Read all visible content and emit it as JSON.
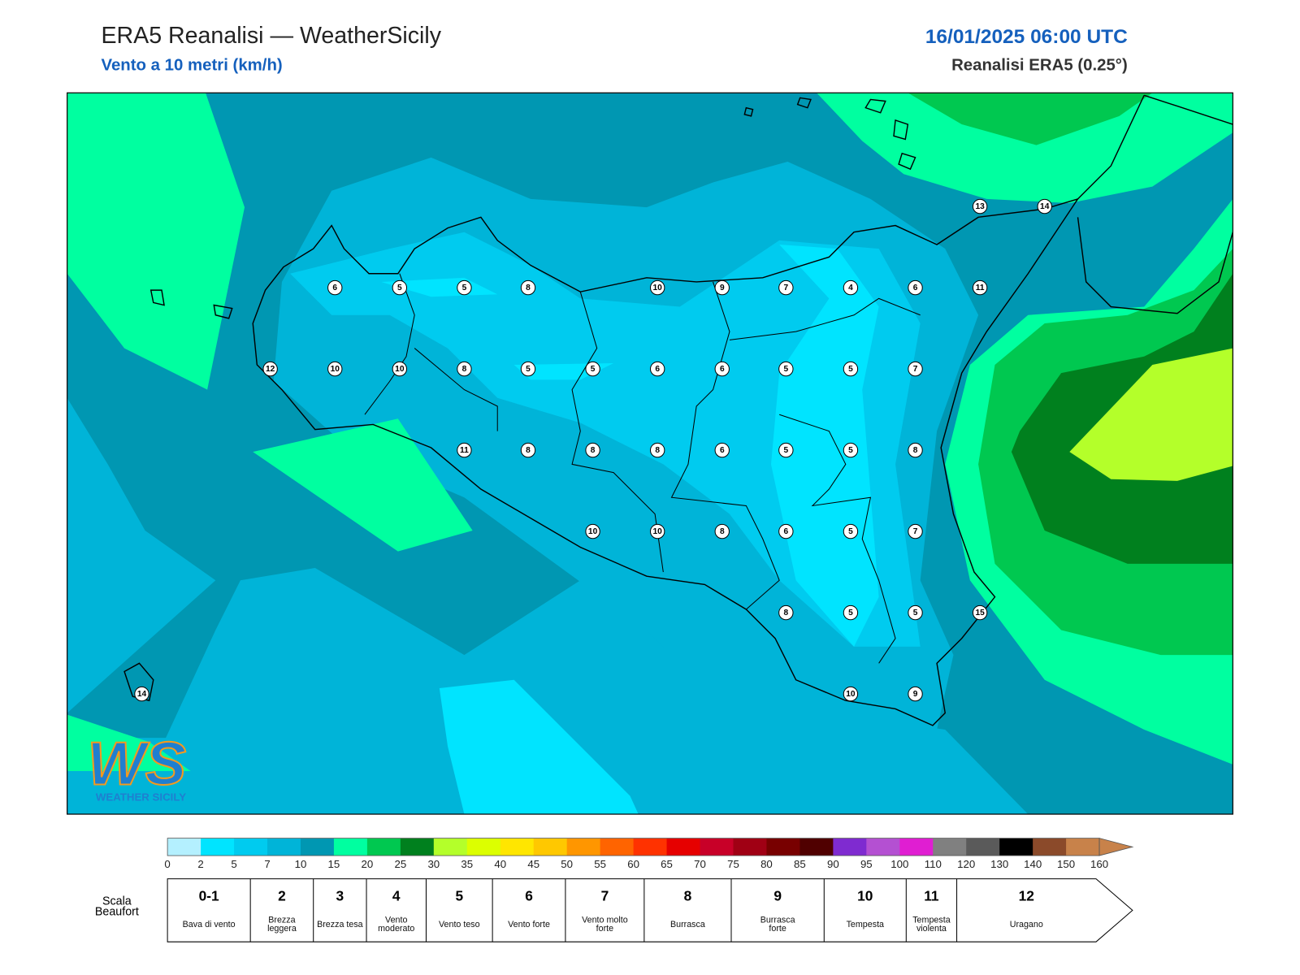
{
  "header": {
    "title": "ERA5 Reanalisi — WeatherSicily",
    "subtitle": "Vento a 10 metri (km/h)",
    "datetime": "16/01/2025 06:00 UTC",
    "source": "Reanalisi ERA5 (0.25°)"
  },
  "map": {
    "stations": [
      6,
      5,
      5,
      8,
      10,
      9,
      7,
      4,
      6,
      11,
      12,
      10,
      10,
      8,
      5,
      5,
      6,
      6,
      5,
      5,
      7,
      11,
      8,
      8,
      8,
      6,
      5,
      5,
      8,
      10,
      10,
      8,
      6,
      5,
      7,
      8,
      5,
      5,
      15,
      10,
      9,
      13,
      14,
      14
    ]
  },
  "logo": {
    "mark": "WS",
    "text": "WEATHER SICILY"
  },
  "colorbar": {
    "ticks": [
      0,
      2,
      5,
      7,
      10,
      15,
      20,
      25,
      30,
      35,
      40,
      45,
      50,
      55,
      60,
      65,
      70,
      75,
      80,
      85,
      90,
      95,
      100,
      110,
      120,
      130,
      140,
      150,
      160
    ],
    "colors": [
      "#b4f0ff",
      "#00e4ff",
      "#00cbef",
      "#00b4d8",
      "#0097b2",
      "#00ffa0",
      "#00c850",
      "#00801e",
      "#b4ff2a",
      "#dcff00",
      "#ffe600",
      "#ffc800",
      "#ff9600",
      "#ff6400",
      "#ff3200",
      "#e60000",
      "#c80028",
      "#a00014",
      "#780000",
      "#500000",
      "#7f2bd0",
      "#b450d2",
      "#e01ed2",
      "#808080",
      "#5a5a5a",
      "#000000",
      "#8b4a2a",
      "#c8824a"
    ]
  },
  "beaufort": {
    "title": "Scala Beaufort",
    "levels": [
      {
        "force": "0-1",
        "label": "Bava di vento"
      },
      {
        "force": "2",
        "label": "Brezza leggera"
      },
      {
        "force": "3",
        "label": "Brezza tesa"
      },
      {
        "force": "4",
        "label": "Vento moderato"
      },
      {
        "force": "5",
        "label": "Vento teso"
      },
      {
        "force": "6",
        "label": "Vento forte"
      },
      {
        "force": "7",
        "label": "Vento molto forte"
      },
      {
        "force": "8",
        "label": "Burrasca"
      },
      {
        "force": "9",
        "label": "Burrasca forte"
      },
      {
        "force": "10",
        "label": "Tempesta"
      },
      {
        "force": "11",
        "label": "Tempesta violenta"
      },
      {
        "force": "12",
        "label": "Uragano"
      }
    ]
  }
}
